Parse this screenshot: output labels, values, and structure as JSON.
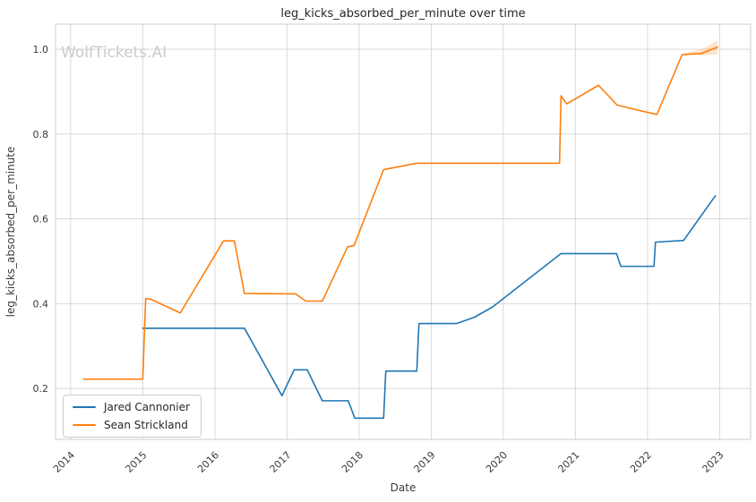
{
  "watermark": "WolfTickets.AI",
  "chart_data": {
    "type": "line",
    "title": "leg_kicks_absorbed_per_minute over time",
    "xlabel": "Date",
    "ylabel": "leg_kicks_absorbed_per_minute",
    "xlim": [
      2013.79,
      2023.43
    ],
    "ylim": [
      0.08,
      1.059
    ],
    "x_ticks": [
      2014,
      2015,
      2016,
      2017,
      2018,
      2019,
      2020,
      2021,
      2022,
      2023
    ],
    "y_ticks": [
      0.2,
      0.4,
      0.6,
      0.8,
      1.0
    ],
    "grid": true,
    "grid_color": "#d9d9d9",
    "spine_color": "#cccccc",
    "legend_position": "lower left",
    "series": [
      {
        "name": "Jared Cannonier",
        "color": "#1f77b4",
        "points": [
          [
            2015.0,
            0.342
          ],
          [
            2016.41,
            0.342
          ],
          [
            2016.93,
            0.183
          ],
          [
            2017.1,
            0.244
          ],
          [
            2017.28,
            0.244
          ],
          [
            2017.49,
            0.171
          ],
          [
            2017.85,
            0.171
          ],
          [
            2017.94,
            0.13
          ],
          [
            2018.34,
            0.13
          ],
          [
            2018.37,
            0.241
          ],
          [
            2018.8,
            0.241
          ],
          [
            2018.83,
            0.353
          ],
          [
            2019.35,
            0.353
          ],
          [
            2019.6,
            0.368
          ],
          [
            2019.85,
            0.392
          ],
          [
            2020.8,
            0.518
          ],
          [
            2021.57,
            0.518
          ],
          [
            2021.63,
            0.488
          ],
          [
            2022.09,
            0.488
          ],
          [
            2022.11,
            0.545
          ],
          [
            2022.5,
            0.549
          ],
          [
            2022.94,
            0.654
          ]
        ]
      },
      {
        "name": "Sean Strickland",
        "color": "#ff7f0e",
        "points": [
          [
            2014.18,
            0.222
          ],
          [
            2015.0,
            0.222
          ],
          [
            2015.04,
            0.412
          ],
          [
            2015.12,
            0.41
          ],
          [
            2015.52,
            0.378
          ],
          [
            2016.12,
            0.548
          ],
          [
            2016.27,
            0.548
          ],
          [
            2016.41,
            0.424
          ],
          [
            2017.12,
            0.423
          ],
          [
            2017.26,
            0.406
          ],
          [
            2017.49,
            0.406
          ],
          [
            2017.84,
            0.534
          ],
          [
            2017.93,
            0.537
          ],
          [
            2018.34,
            0.716
          ],
          [
            2018.8,
            0.731
          ],
          [
            2020.78,
            0.731
          ],
          [
            2020.8,
            0.89
          ],
          [
            2020.88,
            0.871
          ],
          [
            2021.32,
            0.915
          ],
          [
            2021.58,
            0.868
          ],
          [
            2022.0,
            0.851
          ],
          [
            2022.13,
            0.846
          ],
          [
            2022.48,
            0.987
          ],
          [
            2022.75,
            0.99
          ],
          [
            2022.97,
            1.005
          ]
        ],
        "confidence_band": {
          "x": [
            2022.5,
            2022.75,
            2022.97
          ],
          "upper": [
            0.99,
            1.0,
            1.02
          ],
          "lower": [
            0.987,
            0.985,
            0.988
          ]
        }
      }
    ]
  }
}
